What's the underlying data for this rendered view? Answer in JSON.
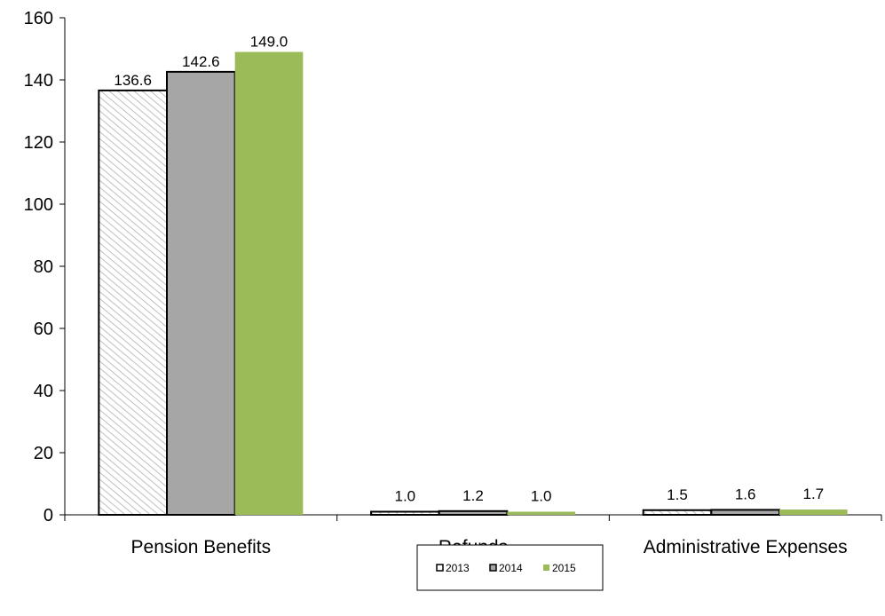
{
  "chart_data": {
    "type": "bar",
    "title": "",
    "xlabel": "",
    "ylabel": "",
    "ylim": [
      0,
      160
    ],
    "yticks": [
      0,
      20,
      40,
      60,
      80,
      100,
      120,
      140,
      160
    ],
    "grid": false,
    "legend_position": "bottom-center",
    "categories": [
      "Pension Benefits",
      "Refunds",
      "Administrative Expenses"
    ],
    "series": [
      {
        "name": "2013",
        "values": [
          136.6,
          1.0,
          1.5
        ],
        "labels": [
          "136.6",
          "1.0",
          "1.5"
        ],
        "fill": "hatched-white",
        "color": "#ffffff"
      },
      {
        "name": "2014",
        "values": [
          142.6,
          1.2,
          1.6
        ],
        "labels": [
          "142.6",
          "1.2",
          "1.6"
        ],
        "fill": "solid",
        "color": "#a6a6a6"
      },
      {
        "name": "2015",
        "values": [
          149.0,
          1.0,
          1.7
        ],
        "labels": [
          "149.0",
          "1.0",
          "1.7"
        ],
        "fill": "solid",
        "color": "#9bbb59"
      }
    ]
  }
}
